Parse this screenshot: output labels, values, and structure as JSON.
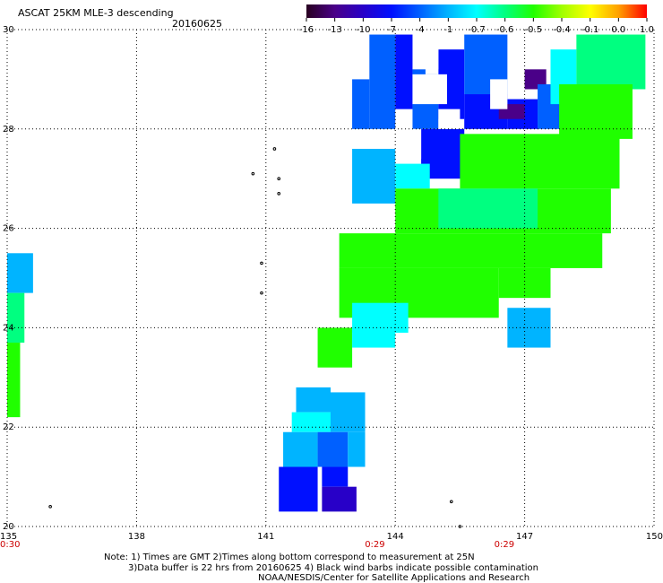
{
  "header": {
    "title": "ASCAT 25KM MLE-3 descending",
    "date": "20160625"
  },
  "colorbar": {
    "labels": [
      "-16",
      "-13",
      "-10",
      "-7",
      "-4",
      "-1",
      "-0.7",
      "-0.6",
      "-0.5",
      "-0.4",
      "-0.1",
      "0.0",
      "1.0"
    ],
    "colors": [
      "#280020",
      "#4a0088",
      "#2800c8",
      "#0010ff",
      "#0060ff",
      "#00b4ff",
      "#00ffff",
      "#00ff80",
      "#20ff00",
      "#a0ff00",
      "#ffff00",
      "#ffa000",
      "#ff0000"
    ]
  },
  "axes": {
    "lon_labels": [
      "135",
      "138",
      "141",
      "144",
      "147",
      "150"
    ],
    "lat_labels": [
      "30",
      "28",
      "26",
      "24",
      "22",
      "20"
    ],
    "lon_range": [
      135,
      150
    ],
    "lat_range": [
      20,
      30
    ],
    "time_labels": [
      {
        "lon": 135,
        "text": "0:30"
      },
      {
        "lon": 144,
        "text": "0:29"
      },
      {
        "lon": 147,
        "text": "0:29"
      }
    ]
  },
  "notes": {
    "line1": "Note: 1) Times are GMT 2)Times along bottom correspond to measurement at 25N",
    "line2": "3)Data buffer is 22 hrs from 20160625 4) Black wind barbs indicate possible contamination",
    "line3": "NOAA/NESDIS/Center for Satellite Applications and Research"
  },
  "swath_regions": [
    {
      "lon": [
        135.0,
        135.6
      ],
      "lat": [
        24.7,
        25.5
      ],
      "color": "#00b4ff"
    },
    {
      "lon": [
        135.0,
        135.4
      ],
      "lat": [
        23.7,
        24.7
      ],
      "color": "#00ff80"
    },
    {
      "lon": [
        135.0,
        135.3
      ],
      "lat": [
        22.2,
        23.7
      ],
      "color": "#20ff00"
    },
    {
      "lon": [
        143.0,
        143.4
      ],
      "lat": [
        28.0,
        29.0
      ],
      "color": "#0060ff"
    },
    {
      "lon": [
        143.4,
        144.0
      ],
      "lat": [
        28.0,
        29.9
      ],
      "color": "#0060ff"
    },
    {
      "lon": [
        144.0,
        144.4
      ],
      "lat": [
        28.4,
        29.9
      ],
      "color": "#0010ff"
    },
    {
      "lon": [
        144.4,
        145.0
      ],
      "lat": [
        28.0,
        29.2
      ],
      "color": "#0060ff"
    },
    {
      "lon": [
        145.0,
        145.6
      ],
      "lat": [
        28.2,
        29.6
      ],
      "color": "#0010ff"
    },
    {
      "lon": [
        145.6,
        146.6
      ],
      "lat": [
        28.7,
        29.9
      ],
      "color": "#0060ff"
    },
    {
      "lon": [
        145.6,
        146.6
      ],
      "lat": [
        28.0,
        28.7
      ],
      "color": "#0010ff"
    },
    {
      "lon": [
        144.6,
        145.6
      ],
      "lat": [
        27.0,
        28.0
      ],
      "color": "#0010ff"
    },
    {
      "lon": [
        143.0,
        144.0
      ],
      "lat": [
        26.5,
        27.6
      ],
      "color": "#00b4ff"
    },
    {
      "lon": [
        144.0,
        144.8
      ],
      "lat": [
        26.8,
        27.3
      ],
      "color": "#00ffff"
    },
    {
      "lon": [
        146.6,
        147.3
      ],
      "lat": [
        28.0,
        28.6
      ],
      "color": "#0010ff"
    },
    {
      "lon": [
        147.0,
        147.5
      ],
      "lat": [
        28.8,
        29.2
      ],
      "color": "#4a0088"
    },
    {
      "lon": [
        146.4,
        147.0
      ],
      "lat": [
        28.2,
        28.5
      ],
      "color": "#4a0088"
    },
    {
      "lon": [
        147.3,
        147.9
      ],
      "lat": [
        28.0,
        28.9
      ],
      "color": "#0060ff"
    },
    {
      "lon": [
        147.6,
        148.2
      ],
      "lat": [
        28.5,
        29.6
      ],
      "color": "#00ffff"
    },
    {
      "lon": [
        148.2,
        149.8
      ],
      "lat": [
        28.8,
        29.9
      ],
      "color": "#00ff80"
    },
    {
      "lon": [
        147.8,
        149.5
      ],
      "lat": [
        27.8,
        28.9
      ],
      "color": "#20ff00"
    },
    {
      "lon": [
        145.5,
        149.2
      ],
      "lat": [
        26.8,
        27.9
      ],
      "color": "#20ff00"
    },
    {
      "lon": [
        144.0,
        149.0
      ],
      "lat": [
        25.9,
        26.8
      ],
      "color": "#20ff00"
    },
    {
      "lon": [
        145.0,
        147.3
      ],
      "lat": [
        26.0,
        26.8
      ],
      "color": "#00ff80"
    },
    {
      "lon": [
        142.7,
        148.8
      ],
      "lat": [
        25.2,
        25.9
      ],
      "color": "#20ff00"
    },
    {
      "lon": [
        142.7,
        146.4
      ],
      "lat": [
        24.2,
        25.2
      ],
      "color": "#20ff00"
    },
    {
      "lon": [
        146.4,
        147.6
      ],
      "lat": [
        24.6,
        25.2
      ],
      "color": "#20ff00"
    },
    {
      "lon": [
        143.0,
        144.3
      ],
      "lat": [
        23.9,
        24.5
      ],
      "color": "#00ffff"
    },
    {
      "lon": [
        142.2,
        143.0
      ],
      "lat": [
        23.2,
        24.0
      ],
      "color": "#20ff00"
    },
    {
      "lon": [
        143.0,
        144.0
      ],
      "lat": [
        23.6,
        24.0
      ],
      "color": "#00ffff"
    },
    {
      "lon": [
        146.6,
        147.6
      ],
      "lat": [
        23.6,
        24.4
      ],
      "color": "#00b4ff"
    },
    {
      "lon": [
        141.7,
        142.5
      ],
      "lat": [
        22.3,
        22.8
      ],
      "color": "#00b4ff"
    },
    {
      "lon": [
        141.6,
        142.5
      ],
      "lat": [
        21.9,
        22.3
      ],
      "color": "#00ffff"
    },
    {
      "lon": [
        142.5,
        143.3
      ],
      "lat": [
        21.9,
        22.7
      ],
      "color": "#00b4ff"
    },
    {
      "lon": [
        141.4,
        142.2
      ],
      "lat": [
        21.2,
        21.9
      ],
      "color": "#00b4ff"
    },
    {
      "lon": [
        142.2,
        142.9
      ],
      "lat": [
        21.2,
        21.9
      ],
      "color": "#0060ff"
    },
    {
      "lon": [
        142.9,
        143.3
      ],
      "lat": [
        21.2,
        21.9
      ],
      "color": "#00b4ff"
    },
    {
      "lon": [
        142.3,
        142.9
      ],
      "lat": [
        20.8,
        21.2
      ],
      "color": "#0010ff"
    },
    {
      "lon": [
        141.3,
        142.2
      ],
      "lat": [
        20.3,
        21.2
      ],
      "color": "#0010ff"
    },
    {
      "lon": [
        142.3,
        143.1
      ],
      "lat": [
        20.3,
        20.8
      ],
      "color": "#2800c8"
    }
  ],
  "gaps": [
    {
      "lon": [
        144.7,
        145.0
      ],
      "lat": [
        29.1,
        29.8
      ]
    },
    {
      "lon": [
        144.4,
        145.2
      ],
      "lat": [
        28.5,
        29.1
      ]
    },
    {
      "lon": [
        145.0,
        145.5
      ],
      "lat": [
        28.0,
        28.4
      ]
    },
    {
      "lon": [
        144.3,
        144.6
      ],
      "lat": [
        27.4,
        28.0
      ]
    },
    {
      "lon": [
        146.2,
        146.6
      ],
      "lat": [
        28.4,
        29.0
      ]
    }
  ],
  "islands": [
    {
      "lon": 140.7,
      "lat": 27.1
    },
    {
      "lon": 141.2,
      "lat": 27.6
    },
    {
      "lon": 141.3,
      "lat": 27.0
    },
    {
      "lon": 141.3,
      "lat": 26.7
    },
    {
      "lon": 140.9,
      "lat": 25.3
    },
    {
      "lon": 140.9,
      "lat": 24.7
    },
    {
      "lon": 136.0,
      "lat": 20.4
    },
    {
      "lon": 145.3,
      "lat": 20.5
    },
    {
      "lon": 145.5,
      "lat": 20.0
    }
  ]
}
